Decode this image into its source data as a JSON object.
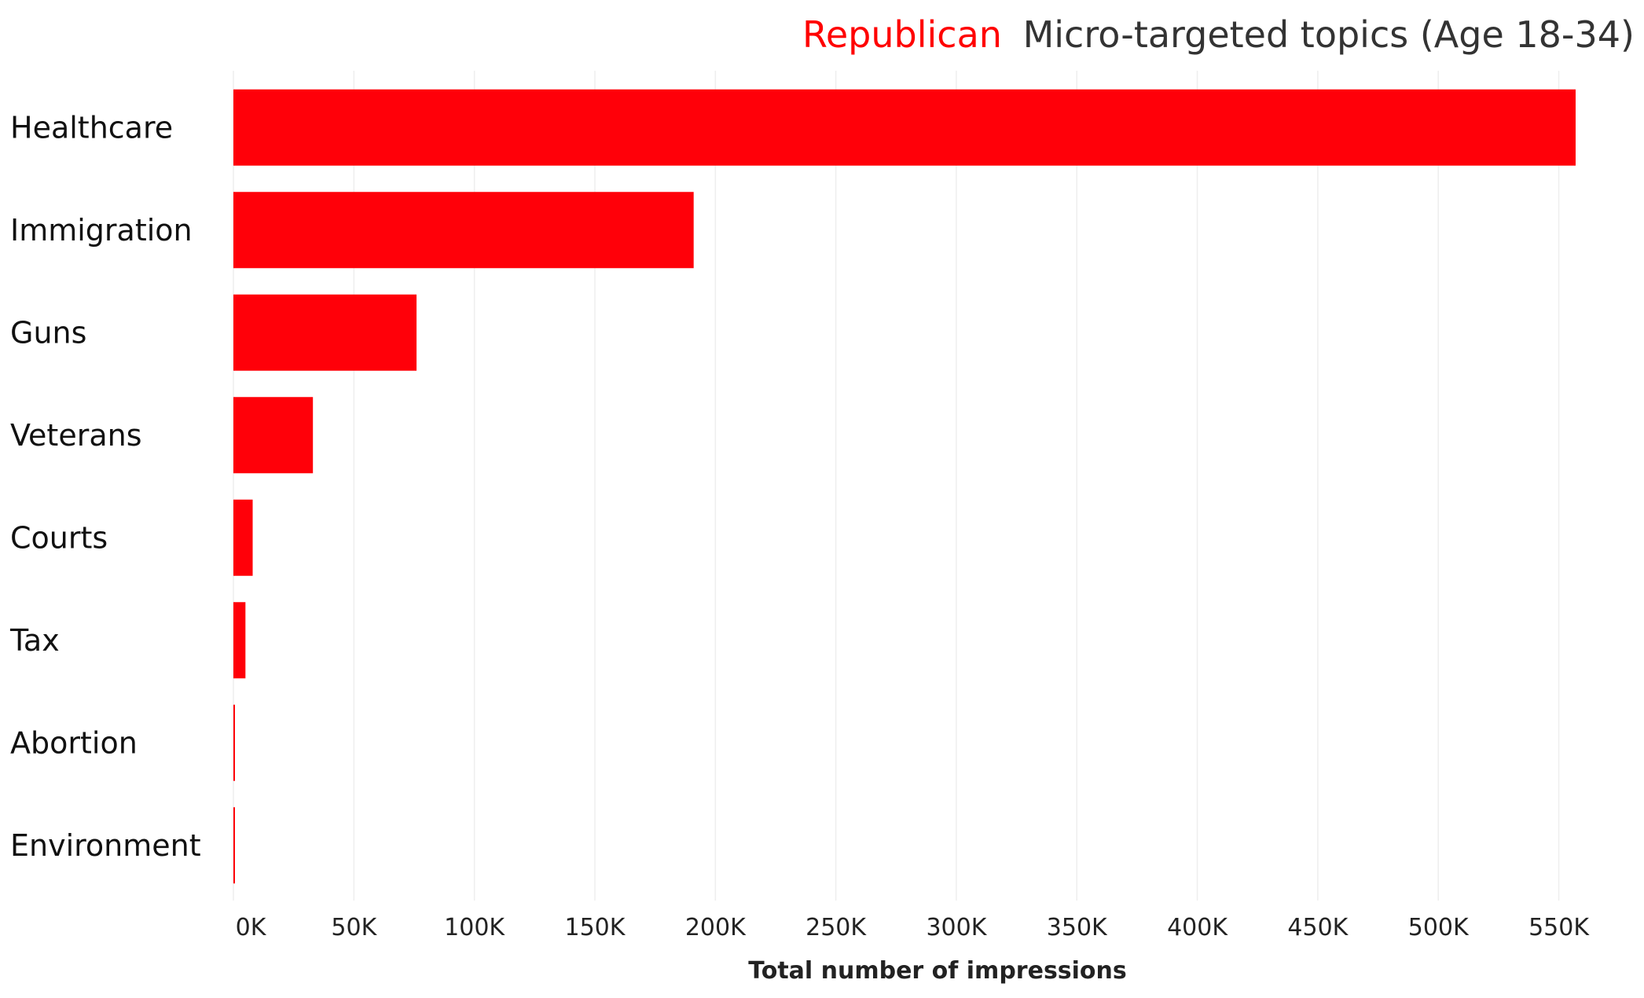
{
  "chart_data": {
    "type": "bar",
    "orientation": "horizontal",
    "title": {
      "highlight": "Republican",
      "rest": "Micro-targeted topics (Age 18-34)"
    },
    "categories": [
      "Healthcare",
      "Immigration",
      "Guns",
      "Veterans",
      "Courts",
      "Tax",
      "Abortion",
      "Environment"
    ],
    "values": [
      557000,
      191000,
      76000,
      33000,
      8000,
      5000,
      500,
      500
    ],
    "xlabel": "Total number of impressions",
    "ylabel": "",
    "xlim": [
      0,
      575000
    ],
    "xticks": [
      0,
      50000,
      100000,
      150000,
      200000,
      250000,
      300000,
      350000,
      400000,
      450000,
      500000,
      550000
    ],
    "xtick_labels": [
      "0K",
      "50K",
      "100K",
      "150K",
      "200K",
      "250K",
      "300K",
      "350K",
      "400K",
      "450K",
      "500K",
      "550K"
    ],
    "grid": "vertical",
    "legend": "none",
    "bar_color": "#ff0009",
    "accent_color": "#ff0000",
    "title_color": "#333333",
    "grid_color": "#eeeeee"
  }
}
